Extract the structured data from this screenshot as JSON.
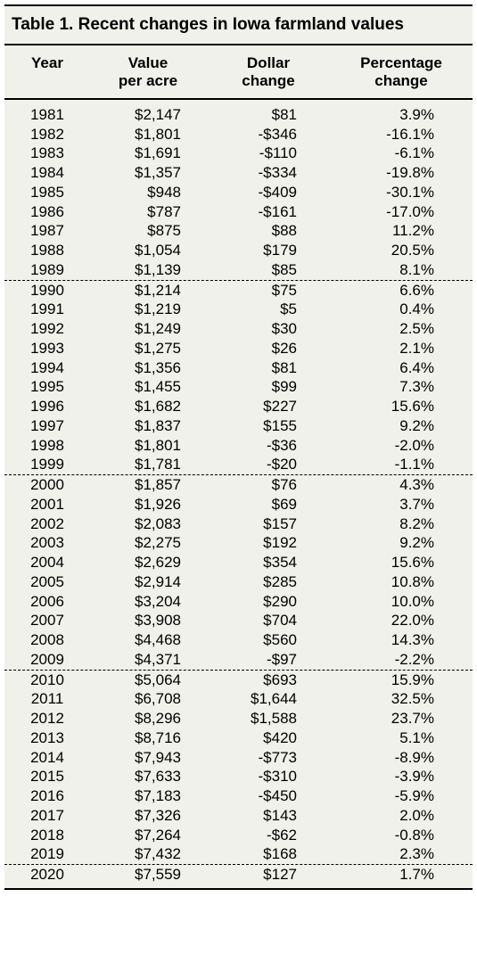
{
  "table": {
    "title": "Table 1. Recent changes in Iowa farmland values",
    "background_color": "#f0f1eb",
    "rule_color": "#000000",
    "font_family": "Helvetica",
    "title_fontsize": 19,
    "header_fontsize": 17,
    "body_fontsize": 17,
    "columns": [
      {
        "key": "year",
        "label_line1": "",
        "label_line2": "Year",
        "align": "center"
      },
      {
        "key": "value",
        "label_line1": "Value",
        "label_line2": "per acre",
        "align": "right"
      },
      {
        "key": "dollar",
        "label_line1": "Dollar",
        "label_line2": "change",
        "align": "right"
      },
      {
        "key": "pct",
        "label_line1": "Percentage",
        "label_line2": "change",
        "align": "right"
      }
    ],
    "decade_breaks_before": [
      1990,
      2000,
      2010,
      2020
    ],
    "rows": [
      {
        "year": "1981",
        "value": "$2,147",
        "dollar": "$81",
        "pct": "3.9%"
      },
      {
        "year": "1982",
        "value": "$1,801",
        "dollar": "-$346",
        "pct": "-16.1%"
      },
      {
        "year": "1983",
        "value": "$1,691",
        "dollar": "-$110",
        "pct": "-6.1%"
      },
      {
        "year": "1984",
        "value": "$1,357",
        "dollar": "-$334",
        "pct": "-19.8%"
      },
      {
        "year": "1985",
        "value": "$948",
        "dollar": "-$409",
        "pct": "-30.1%"
      },
      {
        "year": "1986",
        "value": "$787",
        "dollar": "-$161",
        "pct": "-17.0%"
      },
      {
        "year": "1987",
        "value": "$875",
        "dollar": "$88",
        "pct": "11.2%"
      },
      {
        "year": "1988",
        "value": "$1,054",
        "dollar": "$179",
        "pct": "20.5%"
      },
      {
        "year": "1989",
        "value": "$1,139",
        "dollar": "$85",
        "pct": "8.1%"
      },
      {
        "year": "1990",
        "value": "$1,214",
        "dollar": "$75",
        "pct": "6.6%"
      },
      {
        "year": "1991",
        "value": "$1,219",
        "dollar": "$5",
        "pct": "0.4%"
      },
      {
        "year": "1992",
        "value": "$1,249",
        "dollar": "$30",
        "pct": "2.5%"
      },
      {
        "year": "1993",
        "value": "$1,275",
        "dollar": "$26",
        "pct": "2.1%"
      },
      {
        "year": "1994",
        "value": "$1,356",
        "dollar": "$81",
        "pct": "6.4%"
      },
      {
        "year": "1995",
        "value": "$1,455",
        "dollar": "$99",
        "pct": "7.3%"
      },
      {
        "year": "1996",
        "value": "$1,682",
        "dollar": "$227",
        "pct": "15.6%"
      },
      {
        "year": "1997",
        "value": "$1,837",
        "dollar": "$155",
        "pct": "9.2%"
      },
      {
        "year": "1998",
        "value": "$1,801",
        "dollar": "-$36",
        "pct": "-2.0%"
      },
      {
        "year": "1999",
        "value": "$1,781",
        "dollar": "-$20",
        "pct": "-1.1%"
      },
      {
        "year": "2000",
        "value": "$1,857",
        "dollar": "$76",
        "pct": "4.3%"
      },
      {
        "year": "2001",
        "value": "$1,926",
        "dollar": "$69",
        "pct": "3.7%"
      },
      {
        "year": "2002",
        "value": "$2,083",
        "dollar": "$157",
        "pct": "8.2%"
      },
      {
        "year": "2003",
        "value": "$2,275",
        "dollar": "$192",
        "pct": "9.2%"
      },
      {
        "year": "2004",
        "value": "$2,629",
        "dollar": "$354",
        "pct": "15.6%"
      },
      {
        "year": "2005",
        "value": "$2,914",
        "dollar": "$285",
        "pct": "10.8%"
      },
      {
        "year": "2006",
        "value": "$3,204",
        "dollar": "$290",
        "pct": "10.0%"
      },
      {
        "year": "2007",
        "value": "$3,908",
        "dollar": "$704",
        "pct": "22.0%"
      },
      {
        "year": "2008",
        "value": "$4,468",
        "dollar": "$560",
        "pct": "14.3%"
      },
      {
        "year": "2009",
        "value": "$4,371",
        "dollar": "-$97",
        "pct": "-2.2%"
      },
      {
        "year": "2010",
        "value": "$5,064",
        "dollar": "$693",
        "pct": "15.9%"
      },
      {
        "year": "2011",
        "value": "$6,708",
        "dollar": "$1,644",
        "pct": "32.5%"
      },
      {
        "year": "2012",
        "value": "$8,296",
        "dollar": "$1,588",
        "pct": "23.7%"
      },
      {
        "year": "2013",
        "value": "$8,716",
        "dollar": "$420",
        "pct": "5.1%"
      },
      {
        "year": "2014",
        "value": "$7,943",
        "dollar": "-$773",
        "pct": "-8.9%"
      },
      {
        "year": "2015",
        "value": "$7,633",
        "dollar": "-$310",
        "pct": "-3.9%"
      },
      {
        "year": "2016",
        "value": "$7,183",
        "dollar": "-$450",
        "pct": "-5.9%"
      },
      {
        "year": "2017",
        "value": "$7,326",
        "dollar": "$143",
        "pct": "2.0%"
      },
      {
        "year": "2018",
        "value": "$7,264",
        "dollar": "-$62",
        "pct": "-0.8%"
      },
      {
        "year": "2019",
        "value": "$7,432",
        "dollar": "$168",
        "pct": "2.3%"
      },
      {
        "year": "2020",
        "value": "$7,559",
        "dollar": "$127",
        "pct": "1.7%"
      }
    ]
  }
}
